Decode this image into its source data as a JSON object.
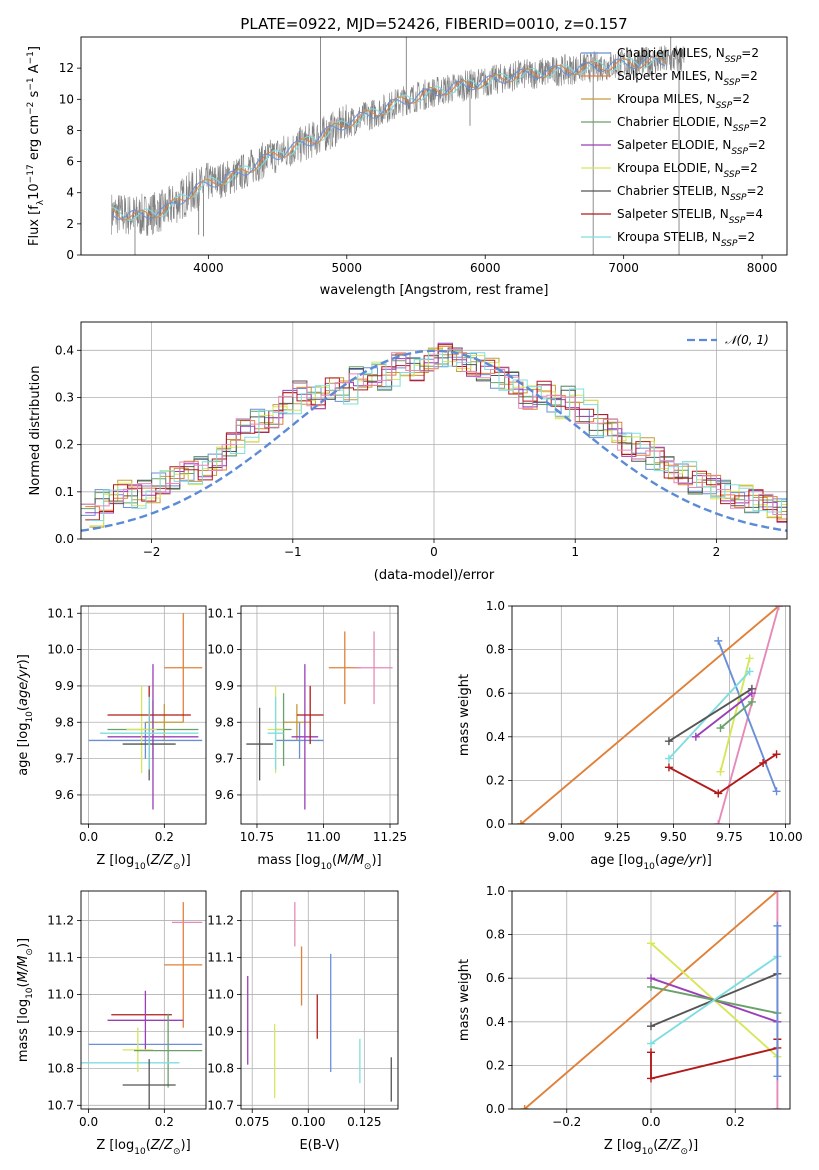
{
  "figure_title": "PLATE=0922, MJD=52426, FIBERID=0010, z=0.157",
  "colors": {
    "Chabrier MILES": "#6a8fd8",
    "Salpeter MILES": "#e0813a",
    "Kroupa MILES": "#c69a3a",
    "Chabrier ELODIE": "#6aa06a",
    "Salpeter ELODIE": "#9a3fb8",
    "Kroupa ELODIE": "#d7e65a",
    "Chabrier STELIB": "#555555",
    "Salpeter STELIB": "#b21a1a",
    "Kroupa STELIB": "#7fdde0",
    "pink": "#e68ab8",
    "observed": "#808080",
    "normal": "#5b8bd6",
    "grid": "#b0b0b0"
  },
  "chart_data": [
    {
      "id": "spectrum",
      "type": "line",
      "title": "PLATE=0922, MJD=52426, FIBERID=0010, z=0.157",
      "xlabel": "wavelength [Angstrom, rest frame]",
      "ylabel": "Flux [f_λ 10^-17 erg cm^-2 s^-1 A^-1]",
      "xlim": [
        3080,
        8180
      ],
      "ylim": [
        0,
        14
      ],
      "xticks": [
        4000,
        5000,
        6000,
        7000,
        8000
      ],
      "yticks": [
        0,
        2,
        4,
        6,
        8,
        10,
        12
      ],
      "grid": false,
      "legend_position": "top-right",
      "legend": [
        {
          "label": "Chabrier MILES, N",
          "sub": "SSP",
          "suffix": "=2",
          "series": "Chabrier MILES"
        },
        {
          "label": "Salpeter MILES, N",
          "sub": "SSP",
          "suffix": "=2",
          "series": "Salpeter MILES"
        },
        {
          "label": "Kroupa MILES, N",
          "sub": "SSP",
          "suffix": "=2",
          "series": "Kroupa MILES"
        },
        {
          "label": "Chabrier ELODIE, N",
          "sub": "SSP",
          "suffix": "=2",
          "series": "Chabrier ELODIE"
        },
        {
          "label": "Salpeter ELODIE, N",
          "sub": "SSP",
          "suffix": "=2",
          "series": "Salpeter ELODIE"
        },
        {
          "label": "Kroupa ELODIE, N",
          "sub": "SSP",
          "suffix": "=2",
          "series": "Kroupa ELODIE"
        },
        {
          "label": "Chabrier STELIB, N",
          "sub": "SSP",
          "suffix": "=2",
          "series": "Chabrier STELIB"
        },
        {
          "label": "Salpeter STELIB, N",
          "sub": "SSP",
          "suffix": "=4",
          "series": "Salpeter STELIB"
        },
        {
          "label": "Kroupa STELIB, N",
          "sub": "SSP",
          "suffix": "=2",
          "series": "Kroupa STELIB"
        }
      ],
      "model_trend": {
        "wavelength": [
          3300,
          3500,
          3700,
          3850,
          4000,
          4200,
          4400,
          4600,
          4800,
          5000,
          5200,
          5400,
          5600,
          5800,
          6000,
          6200,
          6400,
          6600,
          6800
        ],
        "flux": [
          2.7,
          2.5,
          2.9,
          3.9,
          4.6,
          5.1,
          6.1,
          6.8,
          7.6,
          8.5,
          9.1,
          9.9,
          10.4,
          10.8,
          11.1,
          11.5,
          11.7,
          11.9,
          12.1
        ]
      },
      "observed_spikes": [
        {
          "wavelength": 3470,
          "flux": -1
        },
        {
          "wavelength": 3560,
          "flux": 1.5
        },
        {
          "wavelength": 3930,
          "flux": 1.3
        },
        {
          "wavelength": 3965,
          "flux": 1.2
        },
        {
          "wavelength": 4810,
          "flux": 14
        },
        {
          "wavelength": 5430,
          "flux": 14
        },
        {
          "wavelength": 5890,
          "flux": 8.3
        },
        {
          "wavelength": 6780,
          "flux": 0
        },
        {
          "wavelength": 7340,
          "flux": 14
        },
        {
          "wavelength": 7400,
          "flux": 0
        }
      ]
    },
    {
      "id": "residuals",
      "type": "histogram",
      "xlabel": "(data-model)/error",
      "ylabel": "Normed distribution",
      "xlim": [
        -2.5,
        2.5
      ],
      "ylim": [
        0,
        0.46
      ],
      "xticks": [
        -2,
        -1,
        0,
        1,
        2
      ],
      "yticks": [
        0.0,
        0.1,
        0.2,
        0.3,
        0.4
      ],
      "grid": true,
      "legend_position": "top-right",
      "normal_curve_label": "𝒩(0, 1)",
      "bin_width": 0.1,
      "typical_bin_values": [
        0.05,
        0.08,
        0.1,
        0.09,
        0.1,
        0.12,
        0.13,
        0.14,
        0.15,
        0.17,
        0.2,
        0.23,
        0.25,
        0.26,
        0.29,
        0.31,
        0.3,
        0.32,
        0.31,
        0.34,
        0.35,
        0.34,
        0.37,
        0.36,
        0.38,
        0.39,
        0.38,
        0.37,
        0.36,
        0.34,
        0.33,
        0.3,
        0.31,
        0.28,
        0.3,
        0.27,
        0.24,
        0.23,
        0.2,
        0.19,
        0.17,
        0.15,
        0.14,
        0.12,
        0.11,
        0.1,
        0.09,
        0.08,
        0.07,
        0.06
      ]
    },
    {
      "id": "age-vs-Z",
      "type": "errorbar",
      "xlabel": "Z [log10(Z/Z⊙)]",
      "ylabel": "age [log10(age/yr)]",
      "xlim": [
        -0.02,
        0.31
      ],
      "ylim": [
        9.52,
        10.12
      ],
      "xticks": [
        0.0,
        0.2
      ],
      "yticks": [
        9.6,
        9.7,
        9.8,
        9.9,
        10.0,
        10.1
      ],
      "grid": true,
      "points": [
        {
          "series": "Chabrier MILES",
          "x": 0.15,
          "xerr": 0.15,
          "y": 9.75,
          "yerr": 0.05
        },
        {
          "series": "Salpeter MILES",
          "x": 0.25,
          "xerr": 0.05,
          "y": 9.95,
          "yerr": 0.15
        },
        {
          "series": "Kroupa MILES",
          "x": 0.2,
          "xerr": 0.05,
          "y": 9.8,
          "yerr": 0.05
        },
        {
          "series": "Chabrier ELODIE",
          "x": 0.17,
          "xerr": 0.12,
          "y": 9.78,
          "yerr": 0.08
        },
        {
          "series": "Salpeter ELODIE",
          "x": 0.17,
          "xerr": 0.12,
          "y": 9.76,
          "yerr": 0.2
        },
        {
          "series": "Kroupa ELODIE",
          "x": 0.14,
          "xerr": 0.04,
          "y": 9.78,
          "yerr": 0.12
        },
        {
          "series": "Chabrier STELIB",
          "x": 0.16,
          "xerr": 0.07,
          "y": 9.74,
          "yerr": 0.1
        },
        {
          "series": "Salpeter STELIB",
          "x": 0.16,
          "xerr": 0.11,
          "y": 9.82,
          "yerr": 0.08
        },
        {
          "series": "Kroupa STELIB",
          "x": 0.16,
          "xerr": 0.13,
          "y": 9.77,
          "yerr": 0.1
        }
      ]
    },
    {
      "id": "age-vs-mass",
      "type": "errorbar",
      "xlabel": "mass [log10(M/M⊙)]",
      "ylabel": "",
      "xlim": [
        10.69,
        11.28
      ],
      "ylim": [
        9.52,
        10.12
      ],
      "xticks": [
        10.75,
        11.0,
        11.25
      ],
      "yticks": [
        9.6,
        9.7,
        9.8,
        9.9,
        10.0,
        10.1
      ],
      "grid": true,
      "points": [
        {
          "series": "Chabrier MILES",
          "x": 10.91,
          "xerr": 0.09,
          "y": 9.75,
          "yerr": 0.05
        },
        {
          "series": "Salpeter MILES",
          "x": 11.08,
          "xerr": 0.06,
          "y": 9.95,
          "yerr": 0.1
        },
        {
          "series": "Kroupa MILES",
          "x": 10.9,
          "xerr": 0.05,
          "y": 9.8,
          "yerr": 0.05
        },
        {
          "series": "Chabrier ELODIE",
          "x": 10.85,
          "xerr": 0.03,
          "y": 9.78,
          "yerr": 0.1
        },
        {
          "series": "Salpeter ELODIE",
          "x": 10.93,
          "xerr": 0.05,
          "y": 9.76,
          "yerr": 0.2
        },
        {
          "series": "Kroupa ELODIE",
          "x": 10.82,
          "xerr": 0.03,
          "y": 9.78,
          "yerr": 0.12
        },
        {
          "series": "Chabrier STELIB",
          "x": 10.76,
          "xerr": 0.05,
          "y": 9.74,
          "yerr": 0.1
        },
        {
          "series": "Salpeter STELIB",
          "x": 10.95,
          "xerr": 0.05,
          "y": 9.82,
          "yerr": 0.08
        },
        {
          "series": "Kroupa STELIB",
          "x": 10.82,
          "xerr": 0.03,
          "y": 9.77,
          "yerr": 0.1
        },
        {
          "series": "pink",
          "x": 11.19,
          "xerr": 0.07,
          "y": 9.95,
          "yerr": 0.1
        }
      ]
    },
    {
      "id": "weight-vs-age",
      "type": "line",
      "xlabel": "age [log10(age/yr)]",
      "ylabel": "mass weight",
      "xlim": [
        8.78,
        10.02
      ],
      "ylim": [
        0,
        1
      ],
      "xticks": [
        9.0,
        9.25,
        9.5,
        9.75,
        10.0
      ],
      "yticks": [
        0.0,
        0.2,
        0.4,
        0.6,
        0.8,
        1.0
      ],
      "grid": true,
      "series": [
        {
          "series": "Salpeter MILES",
          "x": [
            8.82,
            9.97
          ],
          "y": [
            0.0,
            1.0
          ]
        },
        {
          "series": "pink",
          "x": [
            9.7,
            9.97
          ],
          "y": [
            0.0,
            1.0
          ]
        },
        {
          "series": "Chabrier MILES",
          "x": [
            9.7,
            9.96
          ],
          "y": [
            0.84,
            0.15
          ]
        },
        {
          "series": "Kroupa ELODIE",
          "x": [
            9.71,
            9.84
          ],
          "y": [
            0.24,
            0.76
          ]
        },
        {
          "series": "Kroupa STELIB",
          "x": [
            9.48,
            9.84
          ],
          "y": [
            0.3,
            0.7
          ]
        },
        {
          "series": "Chabrier STELIB",
          "x": [
            9.48,
            9.85
          ],
          "y": [
            0.38,
            0.62
          ]
        },
        {
          "series": "Salpeter ELODIE",
          "x": [
            9.6,
            9.85
          ],
          "y": [
            0.4,
            0.6
          ]
        },
        {
          "series": "Chabrier ELODIE",
          "x": [
            9.71,
            9.85
          ],
          "y": [
            0.44,
            0.56
          ]
        },
        {
          "series": "Salpeter STELIB",
          "x": [
            9.48,
            9.7,
            9.9,
            9.96
          ],
          "y": [
            0.26,
            0.14,
            0.28,
            0.32
          ]
        }
      ]
    },
    {
      "id": "mass-vs-Z",
      "type": "errorbar",
      "xlabel": "Z [log10(Z/Z⊙)]",
      "ylabel": "mass [log10(M/M⊙)]",
      "xlim": [
        -0.02,
        0.31
      ],
      "ylim": [
        10.69,
        11.28
      ],
      "xticks": [
        0.0,
        0.2
      ],
      "yticks": [
        10.7,
        10.8,
        10.9,
        11.0,
        11.1,
        11.2
      ],
      "grid": true,
      "points": [
        {
          "series": "Chabrier MILES",
          "x": 0.15,
          "xerr": 0.15,
          "y": 10.865,
          "yerr": 0.0
        },
        {
          "series": "Salpeter MILES",
          "x": 0.25,
          "xerr": 0.05,
          "y": 11.08,
          "yerr": 0.17
        },
        {
          "series": "pink",
          "x": 0.26,
          "xerr": 0.04,
          "y": 11.195,
          "yerr": 0.0
        },
        {
          "series": "Salpeter STELIB",
          "x": 0.14,
          "xerr": 0.08,
          "y": 10.945,
          "yerr": 0.0
        },
        {
          "series": "Salpeter ELODIE",
          "x": 0.15,
          "xerr": 0.1,
          "y": 10.93,
          "yerr": 0.08
        },
        {
          "series": "Kroupa ELODIE",
          "x": 0.13,
          "xerr": 0.04,
          "y": 10.85,
          "yerr": 0.06
        },
        {
          "series": "Chabrier ELODIE",
          "x": 0.21,
          "xerr": 0.09,
          "y": 10.848,
          "yerr": 0.1
        },
        {
          "series": "Kroupa STELIB",
          "x": 0.11,
          "xerr": 0.13,
          "y": 10.815,
          "yerr": 0.0
        },
        {
          "series": "Chabrier STELIB",
          "x": 0.16,
          "xerr": 0.07,
          "y": 10.755,
          "yerr": 0.07
        }
      ]
    },
    {
      "id": "mass-vs-EBV",
      "type": "errorbar",
      "xlabel": "E(B-V)",
      "ylabel": "",
      "xlim": [
        0.07,
        0.14
      ],
      "ylim": [
        10.69,
        11.28
      ],
      "xticks": [
        0.075,
        0.1,
        0.125
      ],
      "yticks": [
        10.7,
        10.8,
        10.9,
        11.0,
        11.1,
        11.2
      ],
      "grid": true,
      "points": [
        {
          "series": "Salpeter ELODIE",
          "x": 0.073,
          "xerr": 0,
          "y": 10.93,
          "yerr": 0.12
        },
        {
          "series": "Kroupa ELODIE",
          "x": 0.085,
          "xerr": 0,
          "y": 10.82,
          "yerr": 0.1
        },
        {
          "series": "pink",
          "x": 0.094,
          "xerr": 0,
          "y": 11.19,
          "yerr": 0.06
        },
        {
          "series": "Salpeter MILES",
          "x": 0.097,
          "xerr": 0,
          "y": 11.05,
          "yerr": 0.08
        },
        {
          "series": "Salpeter STELIB",
          "x": 0.104,
          "xerr": 0,
          "y": 10.94,
          "yerr": 0.06
        },
        {
          "series": "Chabrier MILES",
          "x": 0.11,
          "xerr": 0,
          "y": 10.95,
          "yerr": 0.16
        },
        {
          "series": "Kroupa STELIB",
          "x": 0.123,
          "xerr": 0,
          "y": 10.82,
          "yerr": 0.06
        },
        {
          "series": "Chabrier STELIB",
          "x": 0.137,
          "xerr": 0,
          "y": 10.77,
          "yerr": 0.06
        }
      ]
    },
    {
      "id": "weight-vs-Z",
      "type": "line",
      "xlabel": "Z [log10(Z/Z⊙)]",
      "ylabel": "mass weight",
      "xlim": [
        -0.33,
        0.33
      ],
      "ylim": [
        0,
        1
      ],
      "xticks": [
        -0.2,
        0.0,
        0.2
      ],
      "yticks": [
        0.0,
        0.2,
        0.4,
        0.6,
        0.8,
        1.0
      ],
      "grid": true,
      "series": [
        {
          "series": "Salpeter MILES",
          "x": [
            -0.3,
            0.3
          ],
          "y": [
            0.0,
            1.0
          ]
        },
        {
          "series": "pink",
          "x": [
            0.3,
            0.3
          ],
          "y": [
            0.0,
            1.0
          ]
        },
        {
          "series": "Kroupa ELODIE",
          "x": [
            0.0,
            0.3
          ],
          "y": [
            0.76,
            0.24
          ]
        },
        {
          "series": "Salpeter ELODIE",
          "x": [
            0.0,
            0.3
          ],
          "y": [
            0.6,
            0.4
          ]
        },
        {
          "series": "Chabrier ELODIE",
          "x": [
            0.0,
            0.3
          ],
          "y": [
            0.56,
            0.44
          ]
        },
        {
          "series": "Chabrier STELIB",
          "x": [
            0.0,
            0.3
          ],
          "y": [
            0.38,
            0.62
          ]
        },
        {
          "series": "Kroupa STELIB",
          "x": [
            0.0,
            0.3
          ],
          "y": [
            0.3,
            0.7
          ]
        },
        {
          "series": "Salpeter STELIB",
          "x": [
            0.0,
            0.0,
            0.3,
            0.3
          ],
          "y": [
            0.26,
            0.14,
            0.28,
            0.32
          ]
        },
        {
          "series": "Chabrier MILES",
          "x": [
            0.3,
            0.3
          ],
          "y": [
            0.15,
            0.84
          ]
        }
      ]
    }
  ]
}
